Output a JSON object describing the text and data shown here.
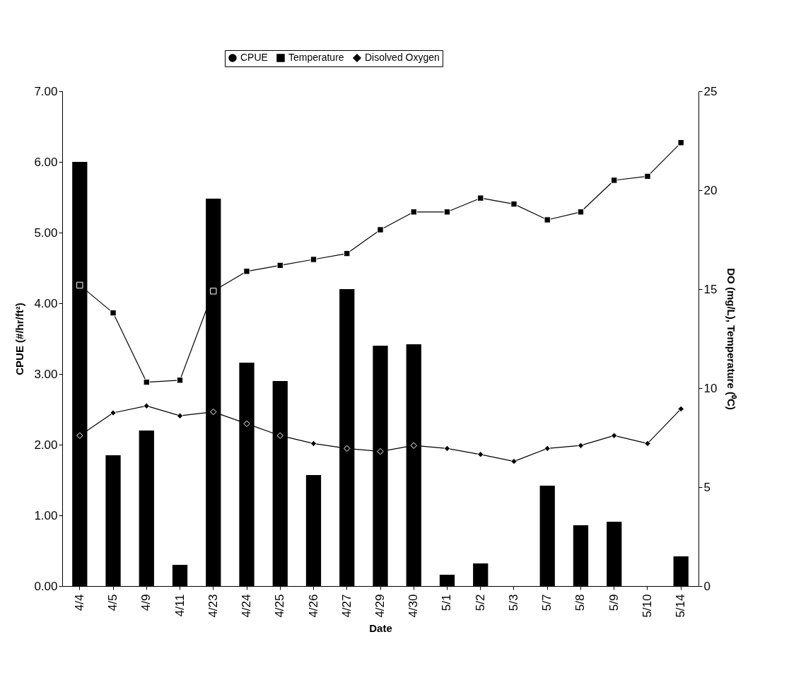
{
  "chart_data": {
    "type": "bar",
    "xlabel": "Date",
    "ylabel": "CPUE (#/hr/ft²)",
    "y2label": "DO (mg/L), Temperature (⁰C)",
    "categories": [
      "4/4",
      "4/5",
      "4/9",
      "4/11",
      "4/23",
      "4/24",
      "4/25",
      "4/26",
      "4/27",
      "4/29",
      "4/30",
      "5/1",
      "5/2",
      "5/3",
      "5/7",
      "5/8",
      "5/9",
      "5/10",
      "5/14"
    ],
    "series": [
      {
        "name": "CPUE",
        "color": "#000000",
        "values": [
          6.0,
          1.85,
          2.2,
          0.3,
          5.48,
          3.16,
          2.9,
          1.57,
          4.2,
          3.4,
          3.42,
          0.16,
          0.32,
          0,
          1.42,
          0.86,
          0.91,
          0,
          0.42
        ]
      },
      {
        "name": "Temperature",
        "type": "line",
        "axis": "y2",
        "color": "#000000",
        "marker": "square",
        "values": [
          15.2,
          13.8,
          10.3,
          10.4,
          14.9,
          15.9,
          16.2,
          16.5,
          16.8,
          18.0,
          18.9,
          18.9,
          19.6,
          19.3,
          18.5,
          18.9,
          20.5,
          20.7,
          22.4
        ]
      },
      {
        "name": "Disolved Oxygen",
        "type": "line",
        "axis": "y2",
        "color": "#000000",
        "marker": "diamond",
        "values": [
          7.6,
          8.75,
          9.1,
          8.6,
          8.8,
          8.2,
          7.6,
          7.2,
          6.95,
          6.8,
          7.1,
          6.95,
          6.65,
          6.3,
          6.95,
          7.1,
          7.6,
          7.2,
          8.95
        ]
      }
    ],
    "ylim": [
      0,
      7
    ],
    "yticks": [
      {
        "value": 0,
        "label": "0.00"
      },
      {
        "value": 1,
        "label": "1.00"
      },
      {
        "value": 2,
        "label": "2.00"
      },
      {
        "value": 3,
        "label": "3.00"
      },
      {
        "value": 4,
        "label": "4.00"
      },
      {
        "value": 5,
        "label": "5.00"
      },
      {
        "value": 6,
        "label": "6.00"
      },
      {
        "value": 7,
        "label": "7.00"
      }
    ],
    "y2lim": [
      0,
      25
    ],
    "y2ticks": [
      0,
      5,
      10,
      15,
      20,
      25
    ],
    "grid": false,
    "legend": "top",
    "line_style": "solid"
  }
}
